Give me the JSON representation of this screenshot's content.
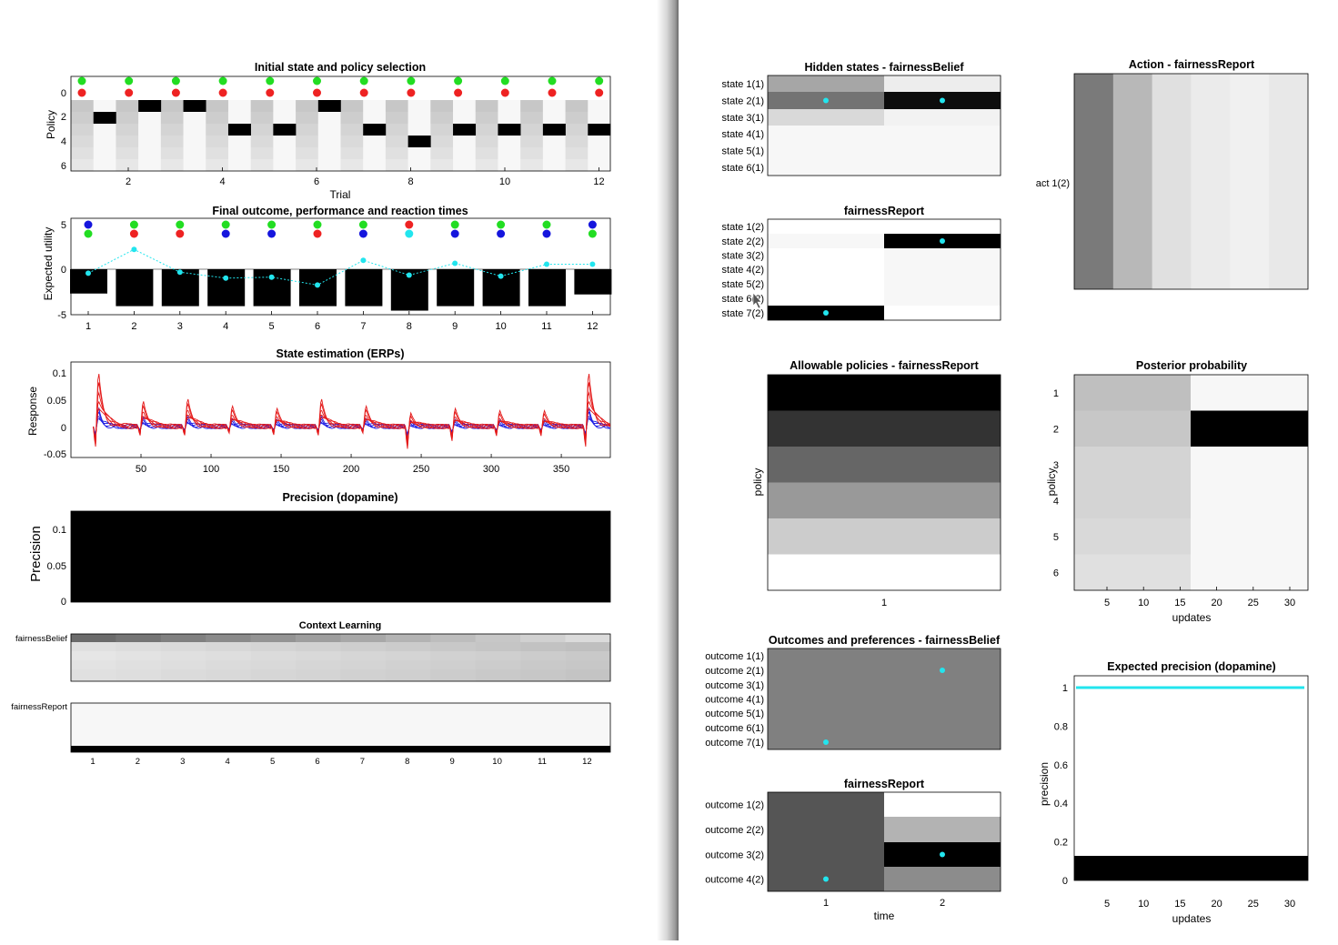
{
  "left_window": {
    "initial_state": {
      "title": "Initial state and policy selection",
      "ylabel": "Policy",
      "xlabel": "Trial",
      "y_ticks": [
        "0",
        "2",
        "4",
        "6"
      ],
      "x_ticks": [
        "2",
        "4",
        "6",
        "8",
        "10",
        "12"
      ],
      "top_row_dots": [
        "green",
        "green",
        "green",
        "green",
        "green",
        "green",
        "green",
        "green",
        "green",
        "green",
        "green",
        "green"
      ],
      "bottom_row_dots": [
        "red",
        "red",
        "red",
        "red",
        "red",
        "red",
        "red",
        "red",
        "red",
        "red",
        "red",
        "red"
      ],
      "selected_policy": [
        2,
        1,
        1,
        3,
        3,
        1,
        3,
        4,
        3,
        3,
        3,
        3
      ]
    },
    "final_outcome": {
      "title": "Final outcome, performance and reaction times",
      "ylabel": "Expected utility",
      "y_ticks": [
        "5",
        "0",
        "-5"
      ],
      "x_ticks": [
        "1",
        "2",
        "3",
        "4",
        "5",
        "6",
        "7",
        "8",
        "9",
        "10",
        "11",
        "12"
      ],
      "top_row_dots": [
        "blue",
        "green",
        "green",
        "green",
        "green",
        "green",
        "green",
        "red",
        "green",
        "green",
        "green",
        "blue"
      ],
      "bottom_row_dots": [
        "green",
        "red",
        "red",
        "blue",
        "blue",
        "red",
        "blue",
        "cyan",
        "blue",
        "blue",
        "blue",
        "green"
      ],
      "bars": [
        -2.7,
        -4.1,
        -4.1,
        -4.1,
        -4.1,
        -4.1,
        -4.1,
        -4.6,
        -4.1,
        -4.1,
        -4.1,
        -2.8
      ],
      "cyan_points": [
        -0.4,
        2.0,
        -0.3,
        -0.9,
        -0.8,
        -1.6,
        0.9,
        -0.6,
        0.6,
        -0.7,
        0.5,
        0.5
      ]
    },
    "erps": {
      "title": "State estimation (ERPs)",
      "ylabel": "Response",
      "y_ticks": [
        "0.1",
        "0.05",
        "0",
        "-0.05"
      ],
      "x_ticks": [
        "50",
        "100",
        "150",
        "200",
        "250",
        "300",
        "350"
      ]
    },
    "precision": {
      "title": "Precision (dopamine)",
      "ylabel": "Precision",
      "y_ticks": [
        "0.1",
        "0.05",
        "0"
      ]
    },
    "context_learning": {
      "title": "Context Learning",
      "row1_label": "fairnessBelief",
      "row2_label": "fairnessReport",
      "x_ticks": [
        "1",
        "2",
        "3",
        "4",
        "5",
        "6",
        "7",
        "8",
        "9",
        "10",
        "11",
        "12"
      ]
    }
  },
  "right_window": {
    "hidden_states": {
      "title": "Hidden states - fairnessBelief",
      "row_labels": [
        "state 1(1)",
        "state 2(1)",
        "state 3(1)",
        "state 4(1)",
        "state 5(1)",
        "state 6(1)"
      ],
      "col1_gray": [
        0.65,
        0.45,
        0.85,
        0.97,
        0.97,
        0.97
      ],
      "col2_gray": [
        0.93,
        0.05,
        0.95,
        0.97,
        0.97,
        0.97
      ],
      "cyan_rows": [
        2,
        2
      ]
    },
    "fairness_report_states": {
      "title": "fairnessReport",
      "row_labels": [
        "state 1(2)",
        "state 2(2)",
        "state 3(2)",
        "state 4(2)",
        "state 5(2)",
        "state 6(2)",
        "state 7(2)"
      ],
      "col1_gray": [
        1,
        0.97,
        1,
        1,
        1,
        1,
        0.0
      ],
      "col2_gray": [
        1,
        0.0,
        0.97,
        0.97,
        0.97,
        0.97,
        1
      ],
      "cyan_rows": [
        7,
        2
      ]
    },
    "action": {
      "title": "Action - fairnessReport",
      "row_label": "act 1(2)",
      "col_gray": [
        0.48,
        0.72,
        0.88,
        0.92,
        0.94,
        0.91,
        0.96
      ]
    },
    "allowable_policies": {
      "title": "Allowable policies - fairnessReport",
      "ylabel": "policy",
      "x_tick": "1",
      "row_gray": [
        0.0,
        0.2,
        0.4,
        0.6,
        0.8,
        1.0
      ]
    },
    "posterior": {
      "title": "Posterior probability",
      "ylabel": "policy",
      "xlabel": "updates",
      "y_ticks": [
        "1",
        "2",
        "3",
        "4",
        "5",
        "6"
      ],
      "x_ticks": [
        "5",
        "10",
        "15",
        "20",
        "25",
        "30"
      ],
      "left_gray": [
        0.75,
        0.78,
        0.83,
        0.83,
        0.85,
        0.88
      ],
      "right_gray": [
        0.97,
        0.0,
        0.97,
        0.97,
        0.97,
        0.97
      ]
    },
    "outcomes_belief": {
      "title": "Outcomes and preferences - fairnessBelief",
      "row_labels": [
        "outcome 1(1)",
        "outcome 2(1)",
        "outcome 3(1)",
        "outcome 4(1)",
        "outcome 5(1)",
        "outcome 6(1)",
        "outcome 7(1)"
      ],
      "cyan_rows": [
        7,
        2
      ]
    },
    "outcomes_report": {
      "title": "fairnessReport",
      "row_labels": [
        "outcome 1(2)",
        "outcome 2(2)",
        "outcome 3(2)",
        "outcome 4(2)"
      ],
      "xlabel": "time",
      "x_ticks": [
        "1",
        "2"
      ],
      "col2_gray": [
        1.0,
        0.7,
        0.0,
        0.55
      ],
      "cyan_rows": [
        4,
        3
      ]
    },
    "expected_precision": {
      "title": "Expected precision (dopamine)",
      "ylabel": "precision",
      "xlabel": "updates",
      "y_ticks": [
        "1",
        "0.8",
        "0.6",
        "0.4",
        "0.2",
        "0"
      ],
      "x_ticks": [
        "5",
        "10",
        "15",
        "20",
        "25",
        "30"
      ]
    }
  }
}
